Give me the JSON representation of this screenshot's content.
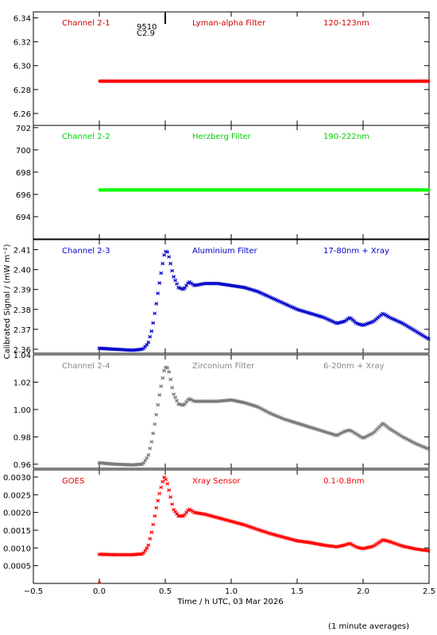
{
  "figure": {
    "xlabel": "Time / h UTC, 03 Mar 2026",
    "ylabel": "Calibrated Signal / (mW m⁻²)",
    "footnote": "(1 minute averages)",
    "flare_marker": {
      "x": 0.5,
      "label_class": "C2.9",
      "label_region": "9510"
    }
  },
  "chart_data": [
    {
      "type": "scatter",
      "panel": "Channel 2-1",
      "channel_label": "Channel 2-1",
      "filter_label": "Lyman-alpha Filter",
      "wavelength_label": "120-123nm",
      "color": "#ff0000",
      "label_color": "#cc0000",
      "ylim": [
        6.25,
        6.345
      ],
      "ticks": [
        "6.26",
        "6.28",
        "6.30",
        "6.32",
        "6.34"
      ],
      "series": [
        {
          "x": [
            0.0,
            2.5
          ],
          "y": [
            6.287,
            6.287
          ],
          "shape": "flat"
        }
      ]
    },
    {
      "type": "scatter",
      "panel": "Channel 2-2",
      "channel_label": "Channel 2-2",
      "filter_label": "Herzberg Filter",
      "wavelength_label": "190-222nm",
      "color": "#00ff00",
      "label_color": "#00d000",
      "ylim": [
        692.0,
        702.2
      ],
      "ticks": [
        "694",
        "696",
        "698",
        "700",
        "702"
      ],
      "series": [
        {
          "x": [
            0.0,
            2.5
          ],
          "y": [
            696.4,
            696.4
          ],
          "shape": "flat"
        }
      ]
    },
    {
      "type": "scatter",
      "panel": "Channel 2-3",
      "channel_label": "Channel 2-3",
      "filter_label": "Aluminium Filter",
      "wavelength_label": "17-80nm + Xray",
      "color": "#0000cc",
      "label_color": "#0000cc",
      "ylim": [
        2.358,
        2.415
      ],
      "ticks": [
        "2.36",
        "2.37",
        "2.38",
        "2.39",
        "2.40",
        "2.41"
      ],
      "series": [
        {
          "x": [
            0.0,
            0.12,
            0.25,
            0.33,
            0.37,
            0.4,
            0.43,
            0.46,
            0.49,
            0.51,
            0.53,
            0.56,
            0.6,
            0.64,
            0.68,
            0.72,
            0.8,
            0.9,
            1.0,
            1.1,
            1.2,
            1.3,
            1.4,
            1.5,
            1.6,
            1.7,
            1.8,
            1.86,
            1.9,
            1.95,
            2.0,
            2.08,
            2.15,
            2.2,
            2.3,
            2.4,
            2.5
          ],
          "y": [
            2.3605,
            2.36,
            2.3595,
            2.36,
            2.363,
            2.37,
            2.382,
            2.395,
            2.407,
            2.41,
            2.406,
            2.397,
            2.391,
            2.39,
            2.394,
            2.392,
            2.393,
            2.393,
            2.392,
            2.391,
            2.389,
            2.386,
            2.383,
            2.38,
            2.378,
            2.376,
            2.373,
            2.374,
            2.376,
            2.373,
            2.372,
            2.374,
            2.378,
            2.376,
            2.373,
            2.369,
            2.365
          ]
        }
      ]
    },
    {
      "type": "scatter",
      "panel": "Channel 2-4",
      "channel_label": "Channel 2-4",
      "filter_label": "Zirconium Filter",
      "wavelength_label": "6-20nm + Xray",
      "color": "#777777",
      "label_color": "#888888",
      "ylim": [
        0.957,
        1.04
      ],
      "ticks": [
        "0.96",
        "0.98",
        "1.00",
        "1.02",
        "1.04"
      ],
      "series": [
        {
          "x": [
            0.0,
            0.12,
            0.25,
            0.33,
            0.37,
            0.4,
            0.43,
            0.46,
            0.49,
            0.51,
            0.53,
            0.56,
            0.6,
            0.64,
            0.68,
            0.72,
            0.8,
            0.9,
            1.0,
            1.1,
            1.2,
            1.3,
            1.4,
            1.5,
            1.6,
            1.7,
            1.8,
            1.86,
            1.9,
            1.95,
            2.0,
            2.08,
            2.15,
            2.2,
            2.3,
            2.4,
            2.5
          ],
          "y": [
            0.961,
            0.96,
            0.9595,
            0.96,
            0.966,
            0.978,
            0.995,
            1.013,
            1.028,
            1.032,
            1.027,
            1.012,
            1.004,
            1.003,
            1.008,
            1.006,
            1.006,
            1.006,
            1.007,
            1.005,
            1.002,
            0.997,
            0.993,
            0.99,
            0.987,
            0.984,
            0.981,
            0.984,
            0.985,
            0.982,
            0.979,
            0.983,
            0.99,
            0.986,
            0.98,
            0.975,
            0.971
          ]
        }
      ]
    },
    {
      "type": "scatter",
      "panel": "GOES",
      "channel_label": "GOES",
      "filter_label": "Xray Sensor",
      "wavelength_label": "0.1-0.8nm",
      "color": "#ff0000",
      "label_color": "#ee0000",
      "ylim": [
        0.0,
        0.0032
      ],
      "ticks": [
        "0.0005",
        "0.0010",
        "0.0015",
        "0.0020",
        "0.0025",
        "0.0030"
      ],
      "series": [
        {
          "x": [
            0.0,
            0.12,
            0.25,
            0.33,
            0.37,
            0.4,
            0.43,
            0.46,
            0.49,
            0.51,
            0.53,
            0.56,
            0.6,
            0.64,
            0.68,
            0.72,
            0.8,
            0.9,
            1.0,
            1.1,
            1.2,
            1.3,
            1.4,
            1.5,
            1.6,
            1.7,
            1.8,
            1.86,
            1.9,
            1.95,
            2.0,
            2.08,
            2.15,
            2.2,
            2.3,
            2.4,
            2.5
          ],
          "y": [
            0.00082,
            0.00081,
            0.00081,
            0.00083,
            0.00105,
            0.0015,
            0.0021,
            0.0026,
            0.003,
            0.0029,
            0.0026,
            0.0021,
            0.0019,
            0.0019,
            0.0021,
            0.002,
            0.00195,
            0.00185,
            0.00175,
            0.00165,
            0.00152,
            0.0014,
            0.0013,
            0.0012,
            0.00115,
            0.00108,
            0.00103,
            0.00108,
            0.00113,
            0.00102,
            0.00098,
            0.00105,
            0.00123,
            0.00118,
            0.00105,
            0.00097,
            0.00092
          ]
        }
      ]
    }
  ],
  "xaxis": {
    "xlim": [
      -0.5,
      2.5
    ],
    "ticks": [
      {
        "v": -0.5,
        "label": "−0.5"
      },
      {
        "v": 0.0,
        "label": "0.0"
      },
      {
        "v": 0.5,
        "label": "0.5"
      },
      {
        "v": 1.0,
        "label": "1.0"
      },
      {
        "v": 1.5,
        "label": "1.5"
      },
      {
        "v": 2.0,
        "label": "2.0"
      },
      {
        "v": 2.5,
        "label": "2.5"
      }
    ]
  }
}
